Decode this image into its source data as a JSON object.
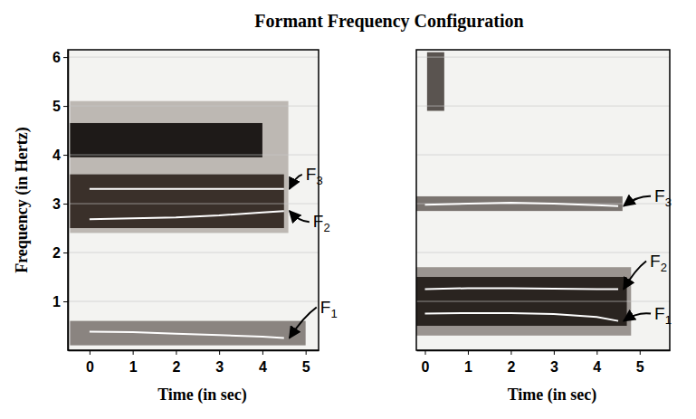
{
  "title": "Formant Frequency Configuration",
  "chart_data": [
    {
      "type": "line",
      "xlabel": "Time (in sec)",
      "ylabel": "Frequency (in Hertz)",
      "xlim": [
        -0.5,
        5.3
      ],
      "ylim": [
        0,
        6.15
      ],
      "xticks": [
        0,
        1,
        2,
        3,
        4,
        5
      ],
      "yticks": [
        1,
        2,
        3,
        4,
        5,
        6
      ],
      "grid": true,
      "x": [
        0,
        1,
        2,
        3,
        4,
        4.5
      ],
      "bands": [
        {
          "x": [
            -0.45,
            4.6
          ],
          "low": 2.4,
          "high": 5.1,
          "color": "#bdb8b3"
        },
        {
          "x": [
            -0.45,
            4.5
          ],
          "low": 2.5,
          "high": 3.6,
          "color": "#3a302a"
        },
        {
          "x": [
            -0.45,
            4.0
          ],
          "low": 3.95,
          "high": 4.65,
          "color": "#1e1a18"
        },
        {
          "x": [
            -0.45,
            5.0
          ],
          "low": 0.1,
          "high": 0.6,
          "color": "#8a8480"
        }
      ],
      "series": [
        {
          "name": "F1",
          "color": "#ffffff",
          "values": [
            0.38,
            0.37,
            0.34,
            0.31,
            0.28,
            0.25
          ]
        },
        {
          "name": "F2",
          "color": "#ffffff",
          "values": [
            2.68,
            2.7,
            2.72,
            2.76,
            2.82,
            2.85
          ]
        },
        {
          "name": "F3",
          "color": "#ffffff",
          "values": [
            3.3,
            3.3,
            3.3,
            3.3,
            3.3,
            3.3
          ]
        }
      ]
    },
    {
      "type": "line",
      "xlabel": "Time (in sec)",
      "xlim": [
        -0.2,
        5.7
      ],
      "ylim": [
        0,
        6.15
      ],
      "xticks": [
        0,
        1,
        2,
        3,
        4,
        5
      ],
      "yticks": [
        1,
        2,
        3,
        4,
        5,
        6
      ],
      "grid": true,
      "tick_labels": "x",
      "x": [
        0,
        1,
        2,
        3,
        4,
        4.5
      ],
      "bands": [
        {
          "x": [
            -0.2,
            4.8
          ],
          "low": 0.3,
          "high": 1.7,
          "color": "#9a9490"
        },
        {
          "x": [
            -0.2,
            4.7
          ],
          "low": 0.5,
          "high": 1.5,
          "color": "#2a2420"
        },
        {
          "x": [
            -0.2,
            4.6
          ],
          "low": 2.85,
          "high": 3.15,
          "color": "#7a7470"
        },
        {
          "x": [
            0.05,
            0.45
          ],
          "low": 4.9,
          "high": 6.1,
          "color": "#5a5450"
        }
      ],
      "series": [
        {
          "name": "F1",
          "color": "#ffffff",
          "values": [
            0.75,
            0.76,
            0.76,
            0.74,
            0.68,
            0.6
          ]
        },
        {
          "name": "F2",
          "color": "#ffffff",
          "values": [
            1.25,
            1.27,
            1.27,
            1.26,
            1.25,
            1.25
          ]
        },
        {
          "name": "F3",
          "color": "#ffffff",
          "values": [
            2.98,
            3.0,
            3.02,
            3.0,
            2.97,
            2.95
          ]
        }
      ]
    }
  ]
}
